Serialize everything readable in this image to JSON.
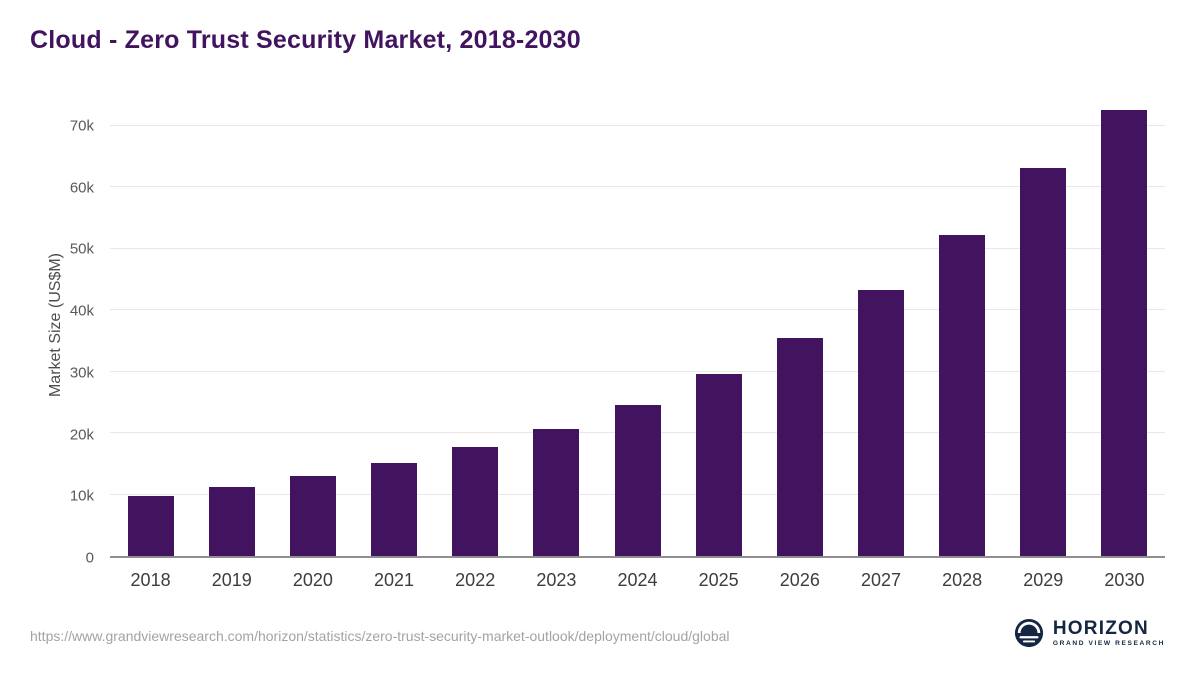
{
  "chart": {
    "title": "Cloud - Zero Trust Security Market, 2018-2030"
  },
  "chart_data": {
    "type": "bar",
    "title": "Cloud - Zero Trust Security Market, 2018-2030",
    "xlabel": "",
    "ylabel": "Market Size (US$M)",
    "unit": "US$M",
    "categories": [
      "2018",
      "2019",
      "2020",
      "2021",
      "2022",
      "2023",
      "2024",
      "2025",
      "2026",
      "2027",
      "2028",
      "2029",
      "2030"
    ],
    "values": [
      9800,
      11300,
      13000,
      15100,
      17700,
      20700,
      24600,
      29600,
      35500,
      43200,
      52300,
      63200,
      72500
    ],
    "ylim": [
      0,
      75000
    ],
    "yticks": [
      {
        "value": 0,
        "label": "0"
      },
      {
        "value": 10000,
        "label": "10k"
      },
      {
        "value": 20000,
        "label": "20k"
      },
      {
        "value": 30000,
        "label": "30k"
      },
      {
        "value": 40000,
        "label": "40k"
      },
      {
        "value": 50000,
        "label": "50k"
      },
      {
        "value": 60000,
        "label": "60k"
      },
      {
        "value": 70000,
        "label": "70k"
      }
    ],
    "grid": "horizontal",
    "legend": "none",
    "bar_color": "#42145f"
  },
  "footer": {
    "source_url": "https://www.grandviewresearch.com/horizon/statistics/zero-trust-security-market-outlook/deployment/cloud/global",
    "logo_title": "HORIZON",
    "logo_subtitle": "GRAND VIEW RESEARCH"
  }
}
